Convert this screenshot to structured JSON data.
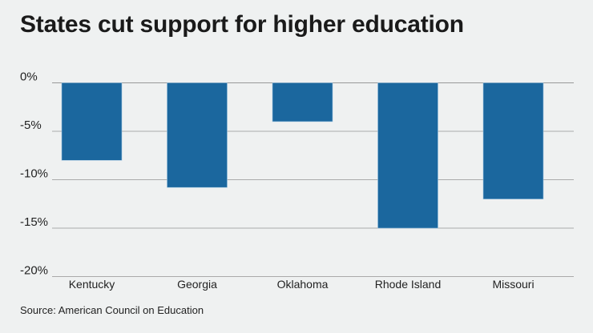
{
  "chart_data": {
    "type": "bar",
    "title": "States cut support for higher education",
    "categories": [
      "Kentucky",
      "Georgia",
      "Oklahoma",
      "Rhode Island",
      "Missouri"
    ],
    "values": [
      -8,
      -10.8,
      -4,
      -15,
      -12
    ],
    "unit": "%",
    "ylim": [
      -20,
      0
    ],
    "yticks": [
      0,
      -5,
      -10,
      -15,
      -20
    ],
    "ytick_labels": [
      "0%",
      "-5%",
      "-10%",
      "-15%",
      "-20%"
    ],
    "xlabel": "",
    "ylabel": "",
    "grid": true,
    "bar_color": "#1b679e",
    "source": "Source: American Council on Education"
  }
}
